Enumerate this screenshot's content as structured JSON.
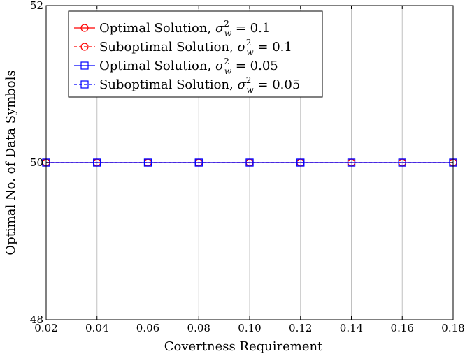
{
  "chart_data": {
    "type": "line",
    "x": [
      0.02,
      0.04,
      0.06,
      0.08,
      0.1,
      0.12,
      0.14,
      0.16,
      0.18
    ],
    "x_tick_labels": [
      "0.02",
      "0.04",
      "0.06",
      "0.08",
      "0.10",
      "0.12",
      "0.14",
      "0.16",
      "0.18"
    ],
    "y_tick_labels": [
      "48",
      "50",
      "52"
    ],
    "y_ticks": [
      48,
      50,
      52
    ],
    "xlim": [
      0.02,
      0.18
    ],
    "ylim": [
      48,
      52
    ],
    "xlabel": "Covertness Requirement",
    "ylabel": "Optimal No. of Data Symbols",
    "grid": "vertical",
    "legend_position": "top-left",
    "series": [
      {
        "name": "Optimal Solution, σ_w^2 = 0.1",
        "label_text": "Optimal Solution, ",
        "sigma_value": "0.1",
        "color": "#ff0000",
        "marker": "circle",
        "dashed": false,
        "values": [
          50,
          50,
          50,
          50,
          50,
          50,
          50,
          50,
          50
        ]
      },
      {
        "name": "Suboptimal Solution, σ_w^2 = 0.1",
        "label_text": "Suboptimal Solution, ",
        "sigma_value": "0.1",
        "color": "#ff0000",
        "marker": "circle",
        "dashed": true,
        "values": [
          50,
          50,
          50,
          50,
          50,
          50,
          50,
          50,
          50
        ]
      },
      {
        "name": "Optimal Solution, σ_w^2 = 0.05",
        "label_text": "Optimal Solution, ",
        "sigma_value": "0.05",
        "color": "#0000ff",
        "marker": "square",
        "dashed": false,
        "values": [
          50,
          50,
          50,
          50,
          50,
          50,
          50,
          50,
          50
        ]
      },
      {
        "name": "Suboptimal Solution, σ_w^2 = 0.05",
        "label_text": "Suboptimal Solution, ",
        "sigma_value": "0.05",
        "color": "#0000ff",
        "marker": "square",
        "dashed": true,
        "values": [
          50,
          50,
          50,
          50,
          50,
          50,
          50,
          50,
          50
        ]
      }
    ]
  }
}
